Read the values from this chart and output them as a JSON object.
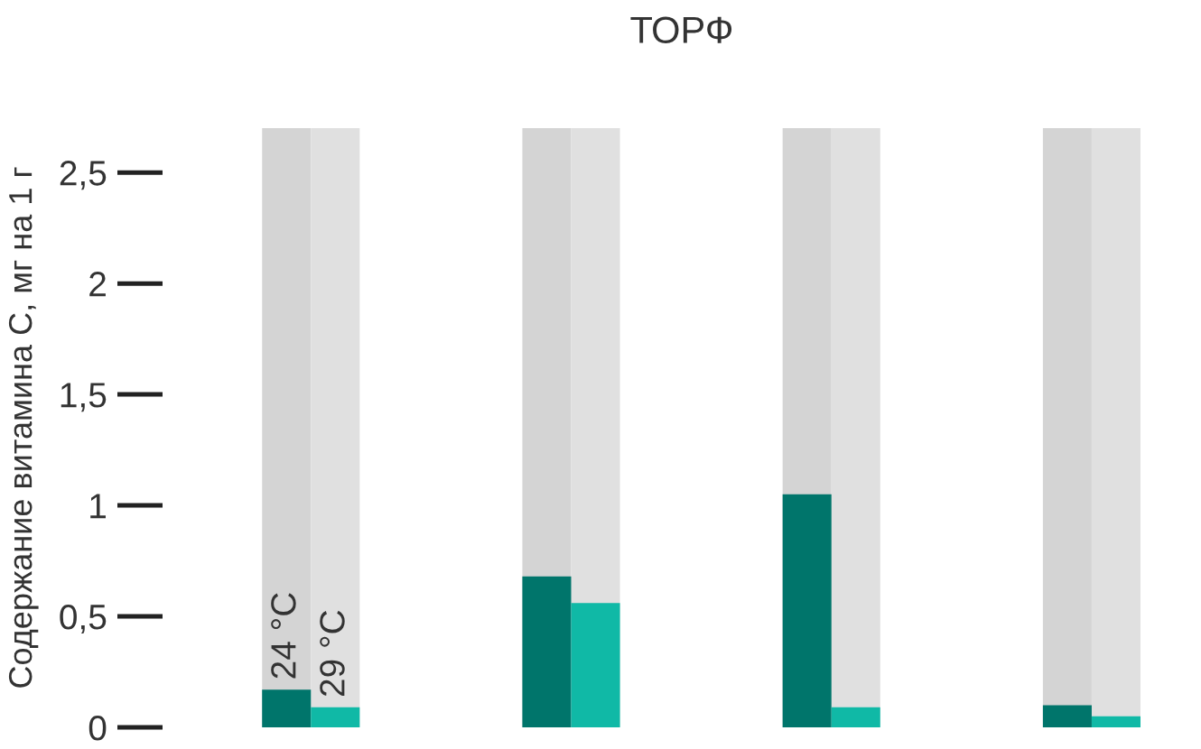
{
  "chart_data": {
    "type": "bar",
    "title": "ТОРФ",
    "ylabel": "Содержание витамина С, мг на 1 г",
    "categories": [
      null,
      null,
      null,
      null
    ],
    "series": [
      {
        "name": "24 °C",
        "color": "#00756b",
        "values": [
          0.17,
          0.68,
          1.05,
          0.1
        ]
      },
      {
        "name": "29 °C",
        "color": "#10b9a6",
        "values": [
          0.09,
          0.56,
          0.09,
          0.05
        ]
      }
    ],
    "ylim": [
      0,
      2.7
    ],
    "yticks": [
      {
        "value": 0,
        "label": "0"
      },
      {
        "value": 0.5,
        "label": "0,5"
      },
      {
        "value": 1,
        "label": "1"
      },
      {
        "value": 1.5,
        "label": "1,5"
      },
      {
        "value": 2,
        "label": "2"
      },
      {
        "value": 2.5,
        "label": "2,5"
      }
    ],
    "tick_labels": "y",
    "grid": false,
    "legend": false
  }
}
